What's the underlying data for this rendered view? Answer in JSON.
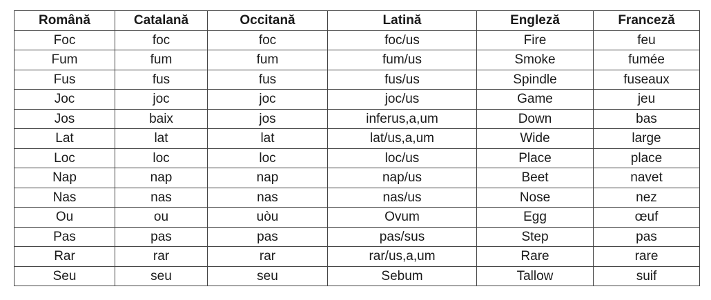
{
  "table": {
    "headers": [
      "Română",
      "Catalană",
      "Occitană",
      "Latină",
      "Engleză",
      "Franceză"
    ],
    "rows": [
      [
        "Foc",
        "foc",
        "foc",
        "foc/us",
        "Fire",
        "feu"
      ],
      [
        "Fum",
        "fum",
        "fum",
        "fum/us",
        "Smoke",
        "fumée"
      ],
      [
        "Fus",
        "fus",
        "fus",
        "fus/us",
        "Spindle",
        "fuseaux"
      ],
      [
        "Joc",
        "joc",
        "joc",
        "joc/us",
        "Game",
        "jeu"
      ],
      [
        "Jos",
        "baix",
        "jos",
        "inferus,a,um",
        "Down",
        "bas"
      ],
      [
        "Lat",
        "lat",
        "lat",
        "lat/us,a,um",
        "Wide",
        "large"
      ],
      [
        "Loc",
        "loc",
        "loc",
        "loc/us",
        "Place",
        "place"
      ],
      [
        "Nap",
        "nap",
        "nap",
        "nap/us",
        "Beet",
        "navet"
      ],
      [
        "Nas",
        "nas",
        "nas",
        "nas/us",
        "Nose",
        "nez"
      ],
      [
        "Ou",
        "ou",
        "uòu",
        "Ovum",
        "Egg",
        "œuf"
      ],
      [
        "Pas",
        "pas",
        "pas",
        "pas/sus",
        "Step",
        "pas"
      ],
      [
        "Rar",
        "rar",
        "rar",
        "rar/us,a,um",
        "Rare",
        "rare"
      ],
      [
        "Seu",
        "seu",
        "seu",
        "Sebum",
        "Tallow",
        "suif"
      ]
    ]
  }
}
